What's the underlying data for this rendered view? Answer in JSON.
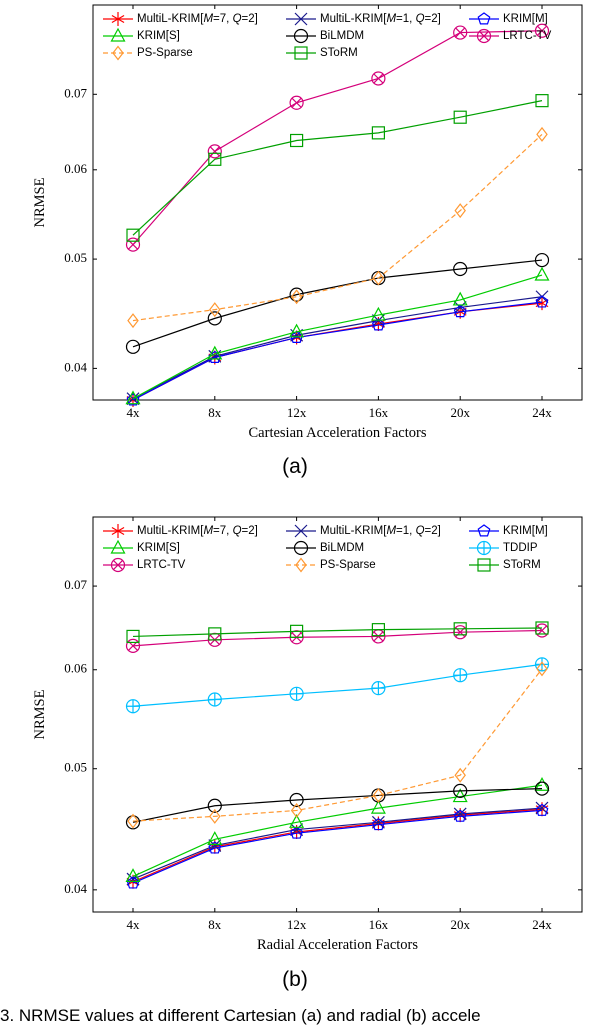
{
  "colors": {
    "multil7": "#ff0000",
    "multil1": "#1a1a8c",
    "krimm": "#0000ff",
    "krims": "#00cc00",
    "bilmdm": "#000000",
    "lrtctv": "#d4007a",
    "pssparse": "#ff9933",
    "storm": "#00a000",
    "tddip": "#00bfff"
  },
  "chart_data": [
    {
      "type": "line",
      "panel_label": "(a)",
      "xlabel": "Cartesian Acceleration Factors",
      "ylabel": "NRMSE",
      "categories": [
        "4x",
        "8x",
        "12x",
        "16x",
        "20x",
        "24x"
      ],
      "y_scale": "log",
      "ylim": [
        0.0375,
        0.084
      ],
      "yticks": [
        "0.04",
        "0.05",
        "0.06",
        "0.07"
      ],
      "legend_placement": "top",
      "series": [
        {
          "name": "MultiL-KRIM[M=7, Q=2]",
          "key": "multil7",
          "marker": "asterisk",
          "dash": false,
          "values": [
            0.0375,
            0.0409,
            0.0426,
            0.0438,
            0.0449,
            0.0457
          ]
        },
        {
          "name": "MultiL-KRIM[M=1, Q=2]",
          "key": "multil1",
          "marker": "cross",
          "dash": false,
          "values": [
            0.0376,
            0.041,
            0.0428,
            0.0441,
            0.0453,
            0.0463
          ]
        },
        {
          "name": "KRIM[M]",
          "key": "krimm",
          "marker": "pentagon",
          "dash": false,
          "values": [
            0.0375,
            0.0409,
            0.0426,
            0.0437,
            0.0449,
            0.0458
          ]
        },
        {
          "name": "KRIM[S]",
          "key": "krims",
          "marker": "triangle",
          "dash": false,
          "values": [
            0.0376,
            0.0412,
            0.0431,
            0.0446,
            0.046,
            0.0484
          ]
        },
        {
          "name": "BiLMDM",
          "key": "bilmdm",
          "marker": "circle",
          "dash": false,
          "values": [
            0.0418,
            0.0443,
            0.0465,
            0.0481,
            0.049,
            0.0499
          ]
        },
        {
          "name": "LRTC-TV",
          "key": "lrtctv",
          "marker": "circlecross",
          "dash": false,
          "values": [
            0.0515,
            0.0623,
            0.0688,
            0.0723,
            0.0794,
            0.0797
          ]
        },
        {
          "name": "PS-Sparse",
          "key": "pssparse",
          "marker": "diamond",
          "dash": true,
          "values": [
            0.0441,
            0.0451,
            0.0463,
            0.0481,
            0.0552,
            0.0645
          ]
        },
        {
          "name": "SToRM",
          "key": "storm",
          "marker": "square",
          "dash": false,
          "values": [
            0.0525,
            0.0613,
            0.0637,
            0.0647,
            0.0668,
            0.0691
          ]
        }
      ]
    },
    {
      "type": "line",
      "panel_label": "(b)",
      "xlabel": "Radial Acceleration Factors",
      "ylabel": "NRMSE",
      "categories": [
        "4x",
        "8x",
        "12x",
        "16x",
        "20x",
        "24x"
      ],
      "y_scale": "log",
      "ylim": [
        0.0384,
        0.0795
      ],
      "yticks": [
        "0.04",
        "0.05",
        "0.06",
        "0.07"
      ],
      "legend_placement": "top",
      "series": [
        {
          "name": "MultiL-KRIM[M=7, Q=2]",
          "key": "multil7",
          "marker": "asterisk",
          "dash": false,
          "values": [
            0.0406,
            0.0433,
            0.0445,
            0.0452,
            0.0459,
            0.0464
          ]
        },
        {
          "name": "MultiL-KRIM[M=1, Q=2]",
          "key": "multil1",
          "marker": "cross",
          "dash": false,
          "values": [
            0.0408,
            0.0434,
            0.0447,
            0.0453,
            0.046,
            0.0465
          ]
        },
        {
          "name": "KRIM[M]",
          "key": "krimm",
          "marker": "pentagon",
          "dash": false,
          "values": [
            0.0405,
            0.0432,
            0.0444,
            0.0451,
            0.0458,
            0.0463
          ]
        },
        {
          "name": "KRIM[S]",
          "key": "krims",
          "marker": "triangle",
          "dash": false,
          "values": [
            0.041,
            0.0439,
            0.0453,
            0.0465,
            0.0475,
            0.0485
          ]
        },
        {
          "name": "BiLMDM",
          "key": "bilmdm",
          "marker": "circle",
          "dash": false,
          "values": [
            0.0453,
            0.0467,
            0.0472,
            0.0476,
            0.048,
            0.0482
          ]
        },
        {
          "name": "TDDIP",
          "key": "tddip",
          "marker": "circleplus",
          "dash": false,
          "values": [
            0.0561,
            0.0568,
            0.0574,
            0.058,
            0.0594,
            0.0606
          ]
        },
        {
          "name": "LRTC-TV",
          "key": "lrtctv",
          "marker": "circlecross",
          "dash": false,
          "values": [
            0.0627,
            0.0634,
            0.0637,
            0.0638,
            0.0643,
            0.0645
          ]
        },
        {
          "name": "PS-Sparse",
          "key": "pssparse",
          "marker": "diamond",
          "dash": true,
          "values": [
            0.0454,
            0.0458,
            0.0463,
            0.0476,
            0.0494,
            0.0601
          ]
        },
        {
          "name": "SToRM",
          "key": "storm",
          "marker": "square",
          "dash": false,
          "values": [
            0.0638,
            0.0641,
            0.0644,
            0.0646,
            0.0647,
            0.0648
          ]
        }
      ]
    }
  ],
  "caption": "3.  NRMSE values at different Cartesian (a) and radial (b) accele"
}
